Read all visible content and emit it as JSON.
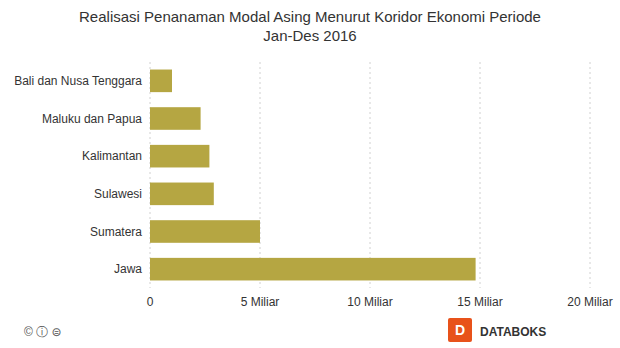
{
  "chart_data": {
    "type": "bar",
    "orientation": "horizontal",
    "title": "Realisasi Penanaman Modal Asing Menurut Koridor Ekonomi Periode\nJan-Des 2016",
    "categories": [
      "Jawa",
      "Sumatera",
      "Sulawesi",
      "Kalimantan",
      "Maluku dan Papua",
      "Bali dan Nusa Tenggara"
    ],
    "values": [
      14.8,
      5.0,
      2.9,
      2.7,
      2.3,
      1.0
    ],
    "color": "#b5a642",
    "xlim": [
      0,
      20
    ],
    "xticks": [
      0,
      {
        "value": 5,
        "label": "5 Miliar"
      },
      {
        "value": 10,
        "label": "10 Miliar"
      },
      {
        "value": 15,
        "label": "15 Miliar"
      },
      {
        "value": 20,
        "label": "20 Miliar"
      }
    ],
    "grid": true,
    "annotations": [
      "© ⓘ ⊜",
      "DATABOKS",
      "D"
    ]
  }
}
